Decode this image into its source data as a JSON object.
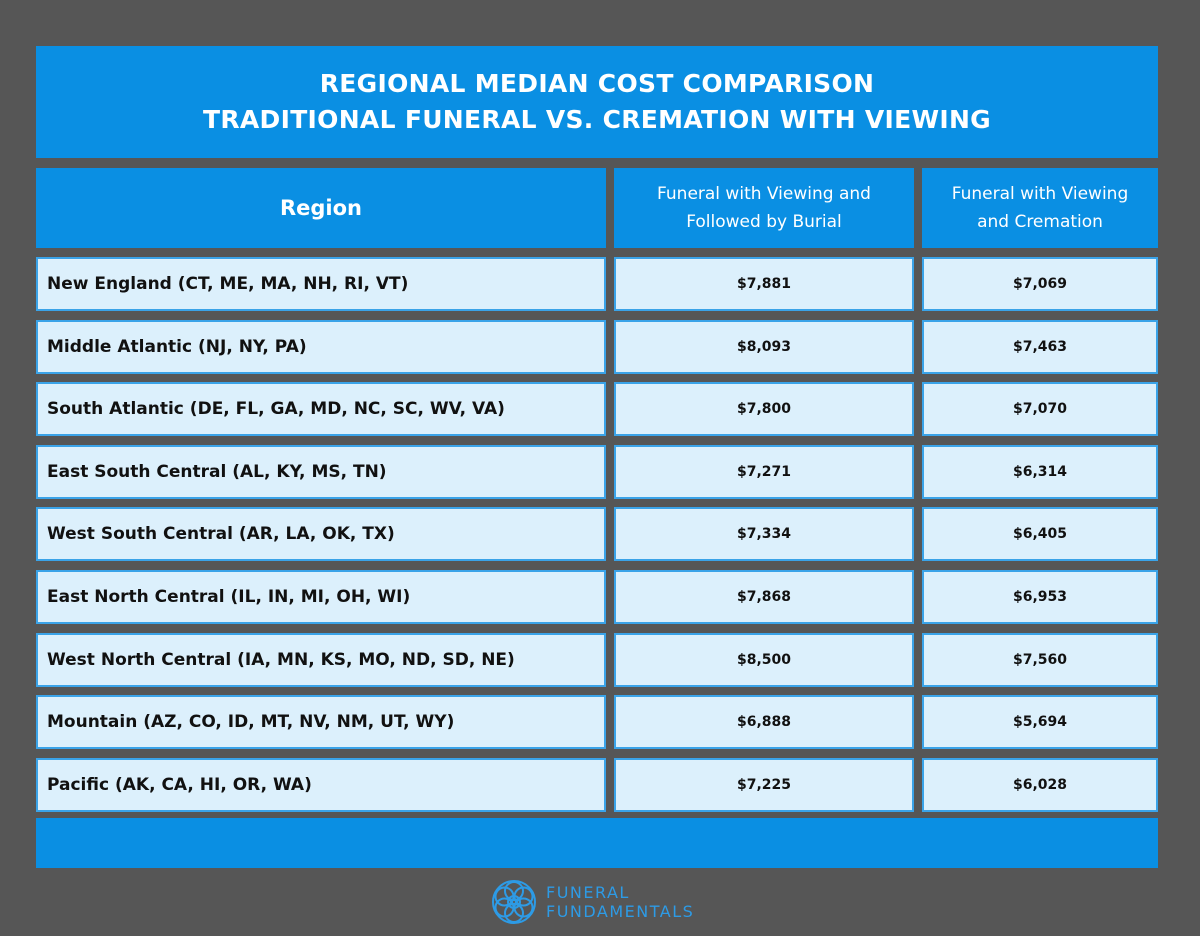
{
  "header": {
    "title": [
      "REGIONAL MEDIAN COST COMPARISON",
      "TRADITIONAL FUNERAL VS. CREMATION WITH VIEWING"
    ]
  },
  "table": {
    "columns": [
      [
        "Region"
      ],
      [
        "Funeral with Viewing and",
        "Followed by Burial"
      ],
      [
        "Funeral with Viewing",
        "and Cremation"
      ]
    ],
    "rows": [
      [
        "New England (CT, ME, MA, NH, RI, VT)",
        "$7,881",
        "$7,069"
      ],
      [
        "Middle Atlantic (NJ, NY, PA)",
        "$8,093",
        "$7,463"
      ],
      [
        "South Atlantic (DE, FL, GA, MD, NC, SC, WV, VA)",
        "$7,800",
        "$7,070"
      ],
      [
        "East South Central (AL, KY, MS, TN)",
        "$7,271",
        "$6,314"
      ],
      [
        "West South Central (AR, LA, OK, TX)",
        "$7,334",
        "$6,405"
      ],
      [
        "East North Central (IL, IN, MI, OH, WI)",
        "$7,868",
        "$6,953"
      ],
      [
        "West North Central (IA, MN, KS, MO, ND, SD, NE)",
        "$8,500",
        "$7,560"
      ],
      [
        "Mountain (AZ, CO, ID, MT, NV, NM, UT, WY)",
        "$6,888",
        "$5,694"
      ],
      [
        "Pacific (AK, CA, HI, OR, WA)",
        "$7,225",
        "$6,028"
      ]
    ]
  },
  "footer": {
    "brand": [
      "FUNERAL",
      "FUNDAMENTALS"
    ]
  }
}
